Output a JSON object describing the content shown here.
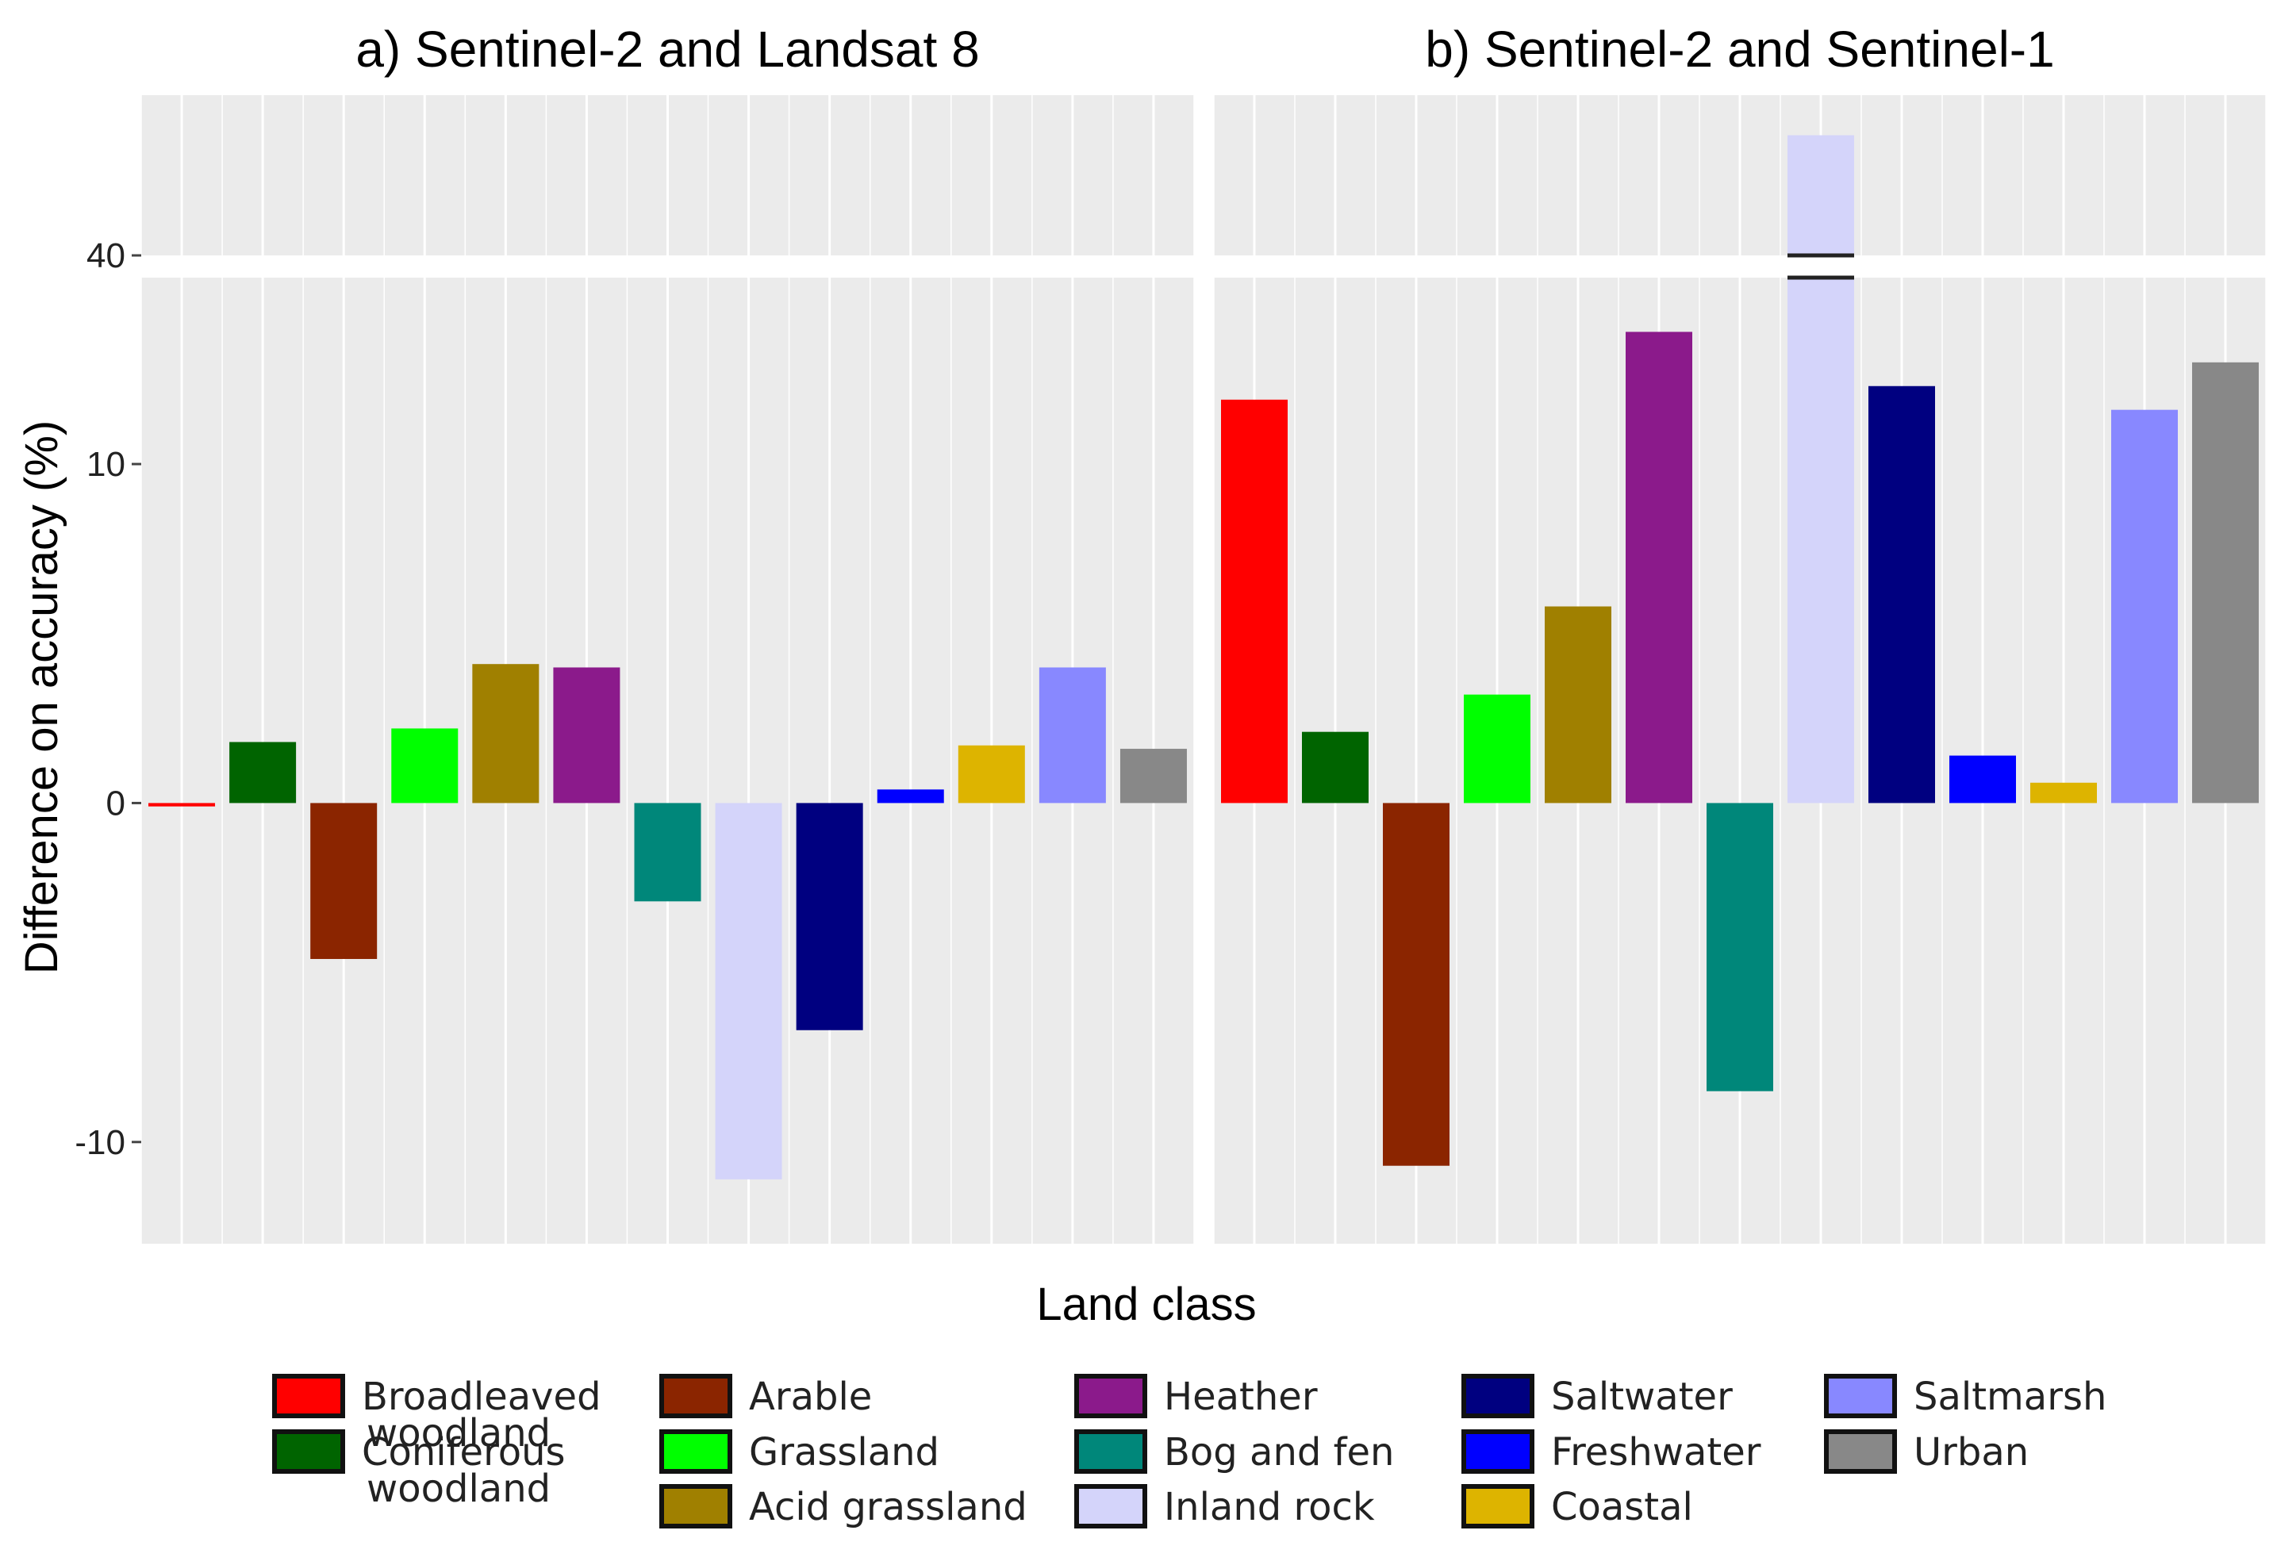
{
  "chart_data": {
    "type": "bar",
    "ylabel": "Difference on accuracy (%)",
    "xlabel": "Land class",
    "y_axis": {
      "ticks": [
        {
          "label": "-10",
          "value": -10
        },
        {
          "label": "0",
          "value": 0
        },
        {
          "label": "10",
          "value": 10
        },
        {
          "label": "40",
          "value": 40
        }
      ],
      "broken_axis": true,
      "lower_range": [
        -13,
        15.5
      ],
      "upper_range": [
        40,
        46
      ]
    },
    "categories": [
      "Broadleaved woodland",
      "Coniferous woodland",
      "Arable",
      "Grassland",
      "Acid grassland",
      "Heather",
      "Bog and fen",
      "Inland rock",
      "Saltwater",
      "Freshwater",
      "Coastal",
      "Saltmarsh",
      "Urban"
    ],
    "colors": [
      "#ff0000",
      "#006400",
      "#8b2500",
      "#00ff00",
      "#a08000",
      "#8b1a8b",
      "#00877a",
      "#d4d4fa",
      "#000080",
      "#0000ff",
      "#ddb400",
      "#8888ff",
      "#888888"
    ],
    "panels": [
      {
        "title": "a) Sentinel-2 and Landsat 8",
        "values": [
          -0.1,
          1.8,
          -4.6,
          2.2,
          4.1,
          4.0,
          -2.9,
          -11.1,
          -6.7,
          0.4,
          1.7,
          4.0,
          1.6
        ]
      },
      {
        "title": "b) Sentinel-2 and Sentinel-1",
        "values": [
          11.9,
          2.1,
          -10.7,
          3.2,
          5.8,
          13.9,
          -8.5,
          44.5,
          12.3,
          1.4,
          0.6,
          11.6,
          13.0
        ]
      }
    ],
    "legend": {
      "position": "bottom",
      "columns": [
        [
          "Broadleaved\nwoodland",
          "Coniferous\nwoodland"
        ],
        [
          "Arable",
          "Grassland",
          "Acid grassland"
        ],
        [
          "Heather",
          "Bog and fen",
          "Inland rock"
        ],
        [
          "Saltwater",
          "Freshwater",
          "Coastal"
        ],
        [
          "Saltmarsh",
          "Urban"
        ]
      ],
      "column_colors": [
        [
          "#ff0000",
          "#006400"
        ],
        [
          "#8b2500",
          "#00ff00",
          "#a08000"
        ],
        [
          "#8b1a8b",
          "#00877a",
          "#d4d4fa"
        ],
        [
          "#000080",
          "#0000ff",
          "#ddb400"
        ],
        [
          "#8888ff",
          "#888888"
        ]
      ]
    }
  }
}
